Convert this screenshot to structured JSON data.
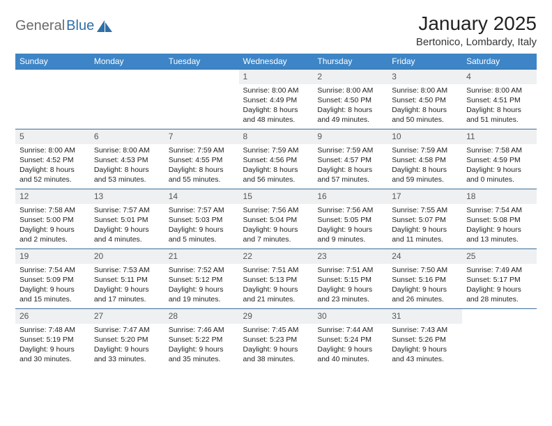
{
  "brand": {
    "part1": "General",
    "part2": "Blue"
  },
  "title": "January 2025",
  "location": "Bertonico, Lombardy, Italy",
  "colors": {
    "header_bg": "#3d85c6",
    "header_fg": "#ffffff",
    "row_border": "#3d6e9a",
    "daynum_bg": "#eef0f1",
    "daynum_fg": "#555555",
    "body_text": "#222222",
    "logo_gray": "#6a6a6a",
    "logo_blue": "#2f6fa8"
  },
  "weekdays": [
    "Sunday",
    "Monday",
    "Tuesday",
    "Wednesday",
    "Thursday",
    "Friday",
    "Saturday"
  ],
  "weeks": [
    [
      {
        "n": "",
        "sr": "",
        "ss": "",
        "dl": ""
      },
      {
        "n": "",
        "sr": "",
        "ss": "",
        "dl": ""
      },
      {
        "n": "",
        "sr": "",
        "ss": "",
        "dl": ""
      },
      {
        "n": "1",
        "sr": "Sunrise: 8:00 AM",
        "ss": "Sunset: 4:49 PM",
        "dl": "Daylight: 8 hours and 48 minutes."
      },
      {
        "n": "2",
        "sr": "Sunrise: 8:00 AM",
        "ss": "Sunset: 4:50 PM",
        "dl": "Daylight: 8 hours and 49 minutes."
      },
      {
        "n": "3",
        "sr": "Sunrise: 8:00 AM",
        "ss": "Sunset: 4:50 PM",
        "dl": "Daylight: 8 hours and 50 minutes."
      },
      {
        "n": "4",
        "sr": "Sunrise: 8:00 AM",
        "ss": "Sunset: 4:51 PM",
        "dl": "Daylight: 8 hours and 51 minutes."
      }
    ],
    [
      {
        "n": "5",
        "sr": "Sunrise: 8:00 AM",
        "ss": "Sunset: 4:52 PM",
        "dl": "Daylight: 8 hours and 52 minutes."
      },
      {
        "n": "6",
        "sr": "Sunrise: 8:00 AM",
        "ss": "Sunset: 4:53 PM",
        "dl": "Daylight: 8 hours and 53 minutes."
      },
      {
        "n": "7",
        "sr": "Sunrise: 7:59 AM",
        "ss": "Sunset: 4:55 PM",
        "dl": "Daylight: 8 hours and 55 minutes."
      },
      {
        "n": "8",
        "sr": "Sunrise: 7:59 AM",
        "ss": "Sunset: 4:56 PM",
        "dl": "Daylight: 8 hours and 56 minutes."
      },
      {
        "n": "9",
        "sr": "Sunrise: 7:59 AM",
        "ss": "Sunset: 4:57 PM",
        "dl": "Daylight: 8 hours and 57 minutes."
      },
      {
        "n": "10",
        "sr": "Sunrise: 7:59 AM",
        "ss": "Sunset: 4:58 PM",
        "dl": "Daylight: 8 hours and 59 minutes."
      },
      {
        "n": "11",
        "sr": "Sunrise: 7:58 AM",
        "ss": "Sunset: 4:59 PM",
        "dl": "Daylight: 9 hours and 0 minutes."
      }
    ],
    [
      {
        "n": "12",
        "sr": "Sunrise: 7:58 AM",
        "ss": "Sunset: 5:00 PM",
        "dl": "Daylight: 9 hours and 2 minutes."
      },
      {
        "n": "13",
        "sr": "Sunrise: 7:57 AM",
        "ss": "Sunset: 5:01 PM",
        "dl": "Daylight: 9 hours and 4 minutes."
      },
      {
        "n": "14",
        "sr": "Sunrise: 7:57 AM",
        "ss": "Sunset: 5:03 PM",
        "dl": "Daylight: 9 hours and 5 minutes."
      },
      {
        "n": "15",
        "sr": "Sunrise: 7:56 AM",
        "ss": "Sunset: 5:04 PM",
        "dl": "Daylight: 9 hours and 7 minutes."
      },
      {
        "n": "16",
        "sr": "Sunrise: 7:56 AM",
        "ss": "Sunset: 5:05 PM",
        "dl": "Daylight: 9 hours and 9 minutes."
      },
      {
        "n": "17",
        "sr": "Sunrise: 7:55 AM",
        "ss": "Sunset: 5:07 PM",
        "dl": "Daylight: 9 hours and 11 minutes."
      },
      {
        "n": "18",
        "sr": "Sunrise: 7:54 AM",
        "ss": "Sunset: 5:08 PM",
        "dl": "Daylight: 9 hours and 13 minutes."
      }
    ],
    [
      {
        "n": "19",
        "sr": "Sunrise: 7:54 AM",
        "ss": "Sunset: 5:09 PM",
        "dl": "Daylight: 9 hours and 15 minutes."
      },
      {
        "n": "20",
        "sr": "Sunrise: 7:53 AM",
        "ss": "Sunset: 5:11 PM",
        "dl": "Daylight: 9 hours and 17 minutes."
      },
      {
        "n": "21",
        "sr": "Sunrise: 7:52 AM",
        "ss": "Sunset: 5:12 PM",
        "dl": "Daylight: 9 hours and 19 minutes."
      },
      {
        "n": "22",
        "sr": "Sunrise: 7:51 AM",
        "ss": "Sunset: 5:13 PM",
        "dl": "Daylight: 9 hours and 21 minutes."
      },
      {
        "n": "23",
        "sr": "Sunrise: 7:51 AM",
        "ss": "Sunset: 5:15 PM",
        "dl": "Daylight: 9 hours and 23 minutes."
      },
      {
        "n": "24",
        "sr": "Sunrise: 7:50 AM",
        "ss": "Sunset: 5:16 PM",
        "dl": "Daylight: 9 hours and 26 minutes."
      },
      {
        "n": "25",
        "sr": "Sunrise: 7:49 AM",
        "ss": "Sunset: 5:17 PM",
        "dl": "Daylight: 9 hours and 28 minutes."
      }
    ],
    [
      {
        "n": "26",
        "sr": "Sunrise: 7:48 AM",
        "ss": "Sunset: 5:19 PM",
        "dl": "Daylight: 9 hours and 30 minutes."
      },
      {
        "n": "27",
        "sr": "Sunrise: 7:47 AM",
        "ss": "Sunset: 5:20 PM",
        "dl": "Daylight: 9 hours and 33 minutes."
      },
      {
        "n": "28",
        "sr": "Sunrise: 7:46 AM",
        "ss": "Sunset: 5:22 PM",
        "dl": "Daylight: 9 hours and 35 minutes."
      },
      {
        "n": "29",
        "sr": "Sunrise: 7:45 AM",
        "ss": "Sunset: 5:23 PM",
        "dl": "Daylight: 9 hours and 38 minutes."
      },
      {
        "n": "30",
        "sr": "Sunrise: 7:44 AM",
        "ss": "Sunset: 5:24 PM",
        "dl": "Daylight: 9 hours and 40 minutes."
      },
      {
        "n": "31",
        "sr": "Sunrise: 7:43 AM",
        "ss": "Sunset: 5:26 PM",
        "dl": "Daylight: 9 hours and 43 minutes."
      },
      {
        "n": "",
        "sr": "",
        "ss": "",
        "dl": ""
      }
    ]
  ]
}
